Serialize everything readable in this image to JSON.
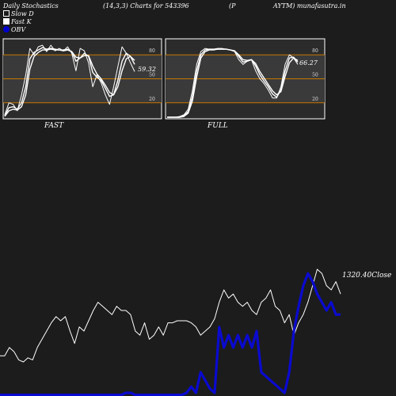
{
  "header": {
    "left": "Daily Stochastics",
    "params": "(14,3,3) Charts for 543396",
    "mid": "(P",
    "right": "AYTM) munafasutra.in"
  },
  "legend": [
    {
      "label": "Slow  D",
      "swatch": "slowd"
    },
    {
      "label": "Fast K",
      "swatch": "fastk"
    },
    {
      "label": "OBV",
      "swatch": "dot"
    }
  ],
  "colors": {
    "background": "#1c1c1c",
    "panel_bg": "#2b2b2b",
    "level_line": "#c87800",
    "stoch_line": "#ffffff",
    "price_line": "#ffffff",
    "obv_line": "#0a0ad0"
  },
  "chart_data": [
    {
      "type": "line",
      "name": "FAST",
      "label": "FAST",
      "ylim": [
        0,
        100
      ],
      "ticks": [
        "80",
        "50",
        "20"
      ],
      "levels": [
        80,
        50,
        20
      ],
      "last_value_label": "59.32",
      "series": [
        {
          "values": [
            5,
            20,
            18,
            10,
            30,
            55,
            88,
            80,
            90,
            92,
            84,
            92,
            85,
            88,
            85,
            90,
            82,
            60,
            88,
            85,
            70,
            40,
            55,
            45,
            30,
            18,
            40,
            65,
            90,
            82,
            70,
            59
          ]
        },
        {
          "values": [
            4,
            14,
            15,
            12,
            20,
            40,
            75,
            83,
            86,
            89,
            87,
            88,
            87,
            86,
            86,
            87,
            84,
            72,
            76,
            82,
            78,
            58,
            52,
            48,
            38,
            28,
            30,
            48,
            72,
            82,
            78,
            68
          ]
        },
        {
          "values": [
            3,
            10,
            12,
            11,
            15,
            30,
            62,
            78,
            83,
            86,
            86,
            87,
            86,
            86,
            85,
            86,
            84,
            77,
            76,
            79,
            79,
            66,
            56,
            50,
            42,
            33,
            30,
            40,
            60,
            75,
            78,
            73
          ]
        }
      ]
    },
    {
      "type": "line",
      "name": "FULL",
      "label": "FULL",
      "ylim": [
        0,
        100
      ],
      "ticks": [
        "80",
        "50",
        "20"
      ],
      "levels": [
        80,
        50,
        20
      ],
      "last_value_label": "66.27",
      "series": [
        {
          "values": [
            2,
            2,
            2,
            3,
            5,
            12,
            35,
            68,
            84,
            88,
            87,
            87,
            88,
            88,
            87,
            86,
            84,
            74,
            68,
            72,
            74,
            60,
            50,
            44,
            36,
            26,
            26,
            40,
            68,
            80,
            76,
            68
          ]
        },
        {
          "values": [
            2,
            2,
            2,
            2,
            4,
            9,
            28,
            60,
            80,
            86,
            87,
            87,
            87,
            87,
            87,
            86,
            85,
            78,
            71,
            72,
            74,
            66,
            55,
            47,
            40,
            31,
            27,
            36,
            60,
            76,
            77,
            71
          ]
        },
        {
          "values": [
            2,
            2,
            2,
            2,
            3,
            7,
            22,
            52,
            76,
            84,
            86,
            86,
            87,
            87,
            87,
            86,
            85,
            80,
            74,
            73,
            74,
            69,
            59,
            51,
            43,
            35,
            30,
            34,
            53,
            70,
            76,
            73
          ]
        }
      ]
    },
    {
      "type": "line",
      "name": "Price",
      "last_value_label": "1320.40",
      "last_value_suffix": "Close",
      "series": [
        {
          "name": "Close",
          "values": [
            18,
            18,
            22,
            20,
            16,
            15,
            17,
            16,
            22,
            26,
            30,
            34,
            37,
            35,
            37,
            30,
            24,
            32,
            30,
            35,
            40,
            44,
            42,
            40,
            38,
            42,
            40,
            40,
            38,
            30,
            28,
            34,
            26,
            28,
            32,
            28,
            34,
            34,
            35,
            35,
            35,
            34,
            32,
            28,
            30,
            32,
            36,
            44,
            50,
            46,
            48,
            44,
            42,
            44,
            40,
            38,
            44,
            46,
            50,
            42,
            40,
            34,
            38,
            28,
            34,
            38,
            44,
            52,
            60,
            58,
            52,
            50,
            54,
            48
          ]
        },
        {
          "name": "OBV",
          "values": [
            -1,
            -1,
            -1,
            -1,
            -1,
            -1,
            -1,
            -1,
            -1,
            -1,
            -1,
            -1,
            -1,
            -1,
            -1,
            -1,
            -1,
            -1,
            -1,
            -1,
            -1,
            -1,
            -1,
            -1,
            -1,
            -1,
            -1,
            0,
            0,
            -1,
            -1,
            -1,
            -1,
            -1,
            -1,
            -1,
            -1,
            -1,
            -1,
            -1,
            0,
            3,
            0,
            10,
            6,
            2,
            0,
            32,
            22,
            28,
            22,
            28,
            22,
            28,
            22,
            30,
            10,
            8,
            6,
            4,
            2,
            0,
            10,
            30,
            42,
            52,
            58,
            54,
            48,
            44,
            40,
            44,
            38,
            38
          ]
        }
      ]
    }
  ]
}
